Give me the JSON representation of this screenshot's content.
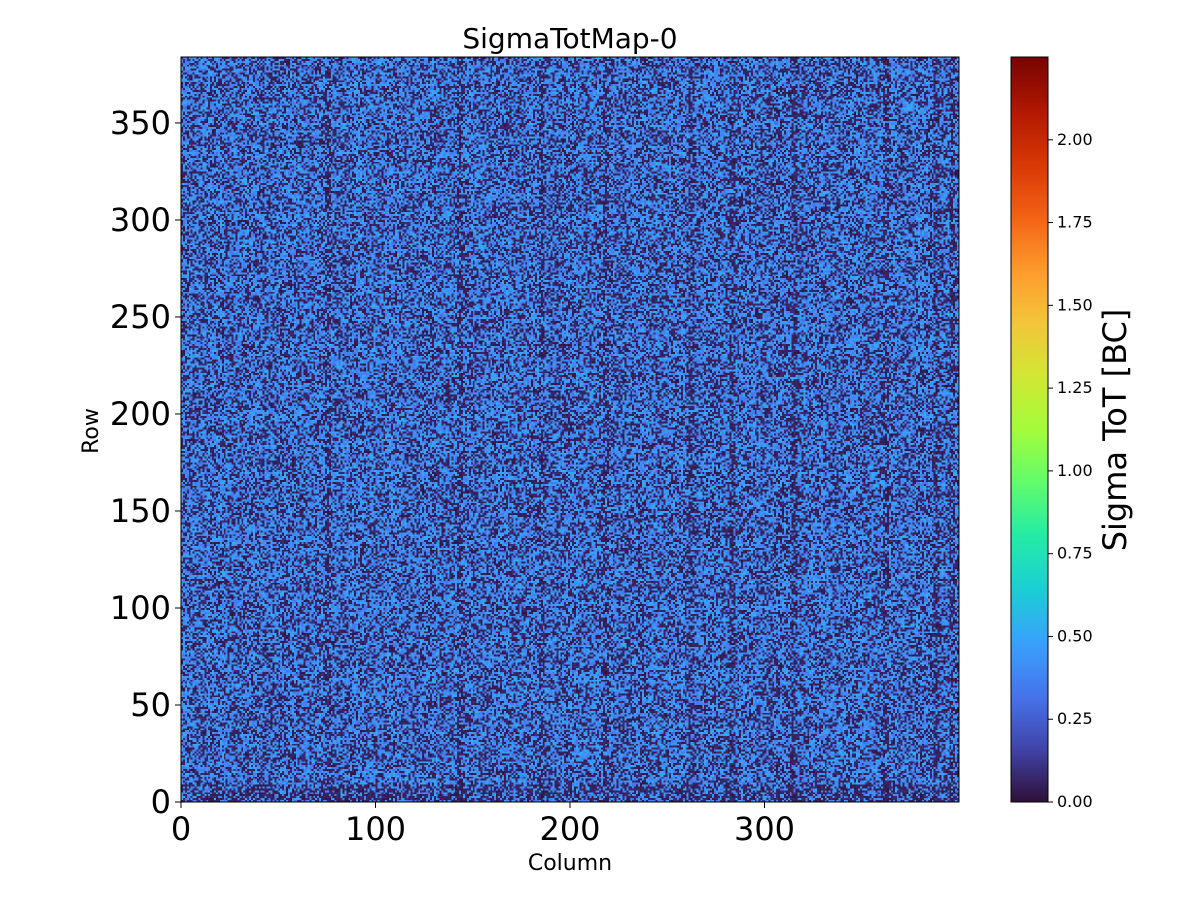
{
  "chart_data": {
    "type": "heatmap",
    "title": "SigmaTotMap-0",
    "xlabel": "Column",
    "ylabel": "Row",
    "colorbar_label": "Sigma ToT [BC]",
    "colormap": "turbo",
    "n_columns": 400,
    "n_rows": 384,
    "xlim": [
      0,
      400
    ],
    "ylim": [
      0,
      384
    ],
    "clim": [
      0,
      2.25
    ],
    "xticks": [
      0,
      100,
      200,
      300
    ],
    "xtick_labels": [
      "0",
      "100",
      "200",
      "300"
    ],
    "yticks": [
      0,
      50,
      100,
      150,
      200,
      250,
      300,
      350
    ],
    "ytick_labels": [
      "0",
      "50",
      "100",
      "150",
      "200",
      "250",
      "300",
      "350"
    ],
    "colorbar_ticks": [
      0.0,
      0.25,
      0.5,
      0.75,
      1.0,
      1.25,
      1.5,
      1.75,
      2.0
    ],
    "colorbar_tick_labels": [
      "0.00",
      "0.25",
      "0.50",
      "0.75",
      "1.00",
      "1.25",
      "1.50",
      "1.75",
      "2.00"
    ],
    "value_distribution": {
      "typical_low": 0.05,
      "typical_high": 0.5,
      "fraction_low": 0.42,
      "dark_column_bands": [
        75,
        143,
        185,
        218,
        262,
        283,
        315,
        362,
        388,
        396
      ],
      "dark_row_band": [
        0,
        8
      ]
    },
    "colors": {
      "turbo_stops": [
        "#30123b",
        "#4145ab",
        "#4675ed",
        "#39a2fc",
        "#1bcfd4",
        "#24eca6",
        "#61fc6c",
        "#a4fc3b",
        "#d1e834",
        "#f3c63a",
        "#fe9b2d",
        "#f36315",
        "#d93806",
        "#b11901",
        "#7a0402"
      ]
    }
  }
}
